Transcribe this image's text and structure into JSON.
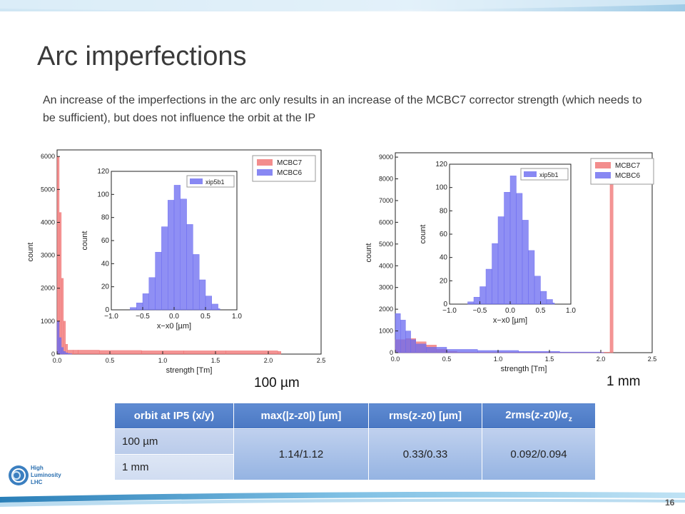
{
  "slide": {
    "title": "Arc imperfections",
    "description": "An increase of the imperfections in the arc only results in an increase of the MCBC7 corrector strength (which needs to be sufficient), but does not influence the orbit at the IP",
    "page_number": "16",
    "logo_text": [
      "High",
      "Luminosity",
      "LHC"
    ]
  },
  "labels": {
    "left": "100 µm",
    "right": "1 mm"
  },
  "table": {
    "headers": [
      "orbit at IP5 (x/y)",
      "max(|z-z0|) [µm]",
      "rms(z-z0) [µm]",
      "2rms(z-z0)/σ",
      "z"
    ],
    "rows": [
      "100 µm",
      "1 mm"
    ],
    "merged_values": [
      "1.14/1.12",
      "0.33/0.33",
      "0.092/0.094"
    ]
  },
  "colors": {
    "mcbc7": "#f07070",
    "mcbc6": "#6a6af0",
    "header": "#4f7fc9"
  },
  "chart_data": [
    {
      "type": "bar",
      "title": "",
      "xlabel": "strength [Tm]",
      "ylabel": "count",
      "xlim": [
        0.0,
        2.5
      ],
      "ylim": [
        0,
        6200
      ],
      "xticks": [
        "0.0",
        "0.5",
        "1.0",
        "1.5",
        "2.0",
        "2.5"
      ],
      "yticks": [
        "0",
        "1000",
        "2000",
        "3000",
        "4000",
        "5000",
        "6000"
      ],
      "legend": [
        "MCBC7",
        "MCBC6"
      ],
      "legend_position": "top-right",
      "series": [
        {
          "name": "MCBC7",
          "x": [
            0.0,
            0.02,
            0.04,
            0.06,
            0.08,
            0.1,
            0.15,
            0.2,
            0.4,
            0.8,
            1.2,
            1.6,
            2.0,
            2.09
          ],
          "values": [
            6000,
            4300,
            2300,
            1000,
            300,
            120,
            120,
            120,
            110,
            100,
            100,
            100,
            100,
            80
          ]
        },
        {
          "name": "MCBC6",
          "x": [
            0.0,
            0.02,
            0.04,
            0.06,
            0.08,
            0.1,
            0.12
          ],
          "values": [
            1000,
            500,
            200,
            80,
            40,
            20,
            10
          ]
        }
      ],
      "inset": {
        "type": "bar",
        "xlabel": "x−x0 [µm]",
        "ylabel": "count",
        "xlim": [
          -1.0,
          1.0
        ],
        "ylim": [
          0,
          120
        ],
        "xticks": [
          "−1.0",
          "−0.5",
          "0.0",
          "0.5",
          "1.0"
        ],
        "yticks": [
          "0",
          "20",
          "40",
          "60",
          "80",
          "100",
          "120"
        ],
        "legend": [
          "xip5b1"
        ],
        "series": [
          {
            "name": "xip5b1",
            "x": [
              -0.7,
              -0.6,
              -0.5,
              -0.4,
              -0.3,
              -0.2,
              -0.1,
              0.0,
              0.1,
              0.2,
              0.3,
              0.4,
              0.5,
              0.6,
              0.7
            ],
            "values": [
              2,
              6,
              14,
              28,
              50,
              72,
              95,
              108,
              96,
              74,
              48,
              26,
              12,
              5,
              1
            ]
          }
        ]
      }
    },
    {
      "type": "bar",
      "title": "",
      "xlabel": "strength [Tm]",
      "ylabel": "count",
      "xlim": [
        0.0,
        2.5
      ],
      "ylim": [
        0,
        9200
      ],
      "xticks": [
        "0.0",
        "0.5",
        "1.0",
        "1.5",
        "2.0",
        "2.5"
      ],
      "yticks": [
        "0",
        "1000",
        "2000",
        "3000",
        "4000",
        "5000",
        "6000",
        "7000",
        "8000",
        "9000"
      ],
      "legend": [
        "MCBC7",
        "MCBC6"
      ],
      "legend_position": "top-right",
      "series": [
        {
          "name": "MCBC7",
          "x": [
            0.0,
            0.1,
            0.2,
            0.3,
            0.4,
            0.5,
            0.6,
            2.09
          ],
          "values": [
            600,
            650,
            500,
            350,
            150,
            60,
            20,
            8900
          ]
        },
        {
          "name": "MCBC6",
          "x": [
            0.0,
            0.05,
            0.1,
            0.15,
            0.2,
            0.3,
            0.5,
            0.8,
            1.2,
            1.6,
            2.0
          ],
          "values": [
            1800,
            1500,
            1000,
            600,
            400,
            250,
            150,
            100,
            60,
            30,
            10
          ]
        }
      ],
      "inset": {
        "type": "bar",
        "xlabel": "x−x0 [µm]",
        "ylabel": "count",
        "xlim": [
          -1.0,
          1.0
        ],
        "ylim": [
          0,
          120
        ],
        "xticks": [
          "−1.0",
          "−0.5",
          "0.0",
          "0.5",
          "1.0"
        ],
        "yticks": [
          "0",
          "20",
          "40",
          "60",
          "80",
          "100",
          "120"
        ],
        "legend": [
          "xip5b1"
        ],
        "series": [
          {
            "name": "xip5b1",
            "x": [
              -0.7,
              -0.6,
              -0.5,
              -0.4,
              -0.3,
              -0.2,
              -0.1,
              0.0,
              0.1,
              0.2,
              0.3,
              0.4,
              0.5,
              0.6,
              0.7
            ],
            "values": [
              2,
              6,
              15,
              30,
              52,
              75,
              96,
              110,
              95,
              72,
              46,
              24,
              11,
              4,
              1
            ]
          }
        ]
      }
    }
  ]
}
